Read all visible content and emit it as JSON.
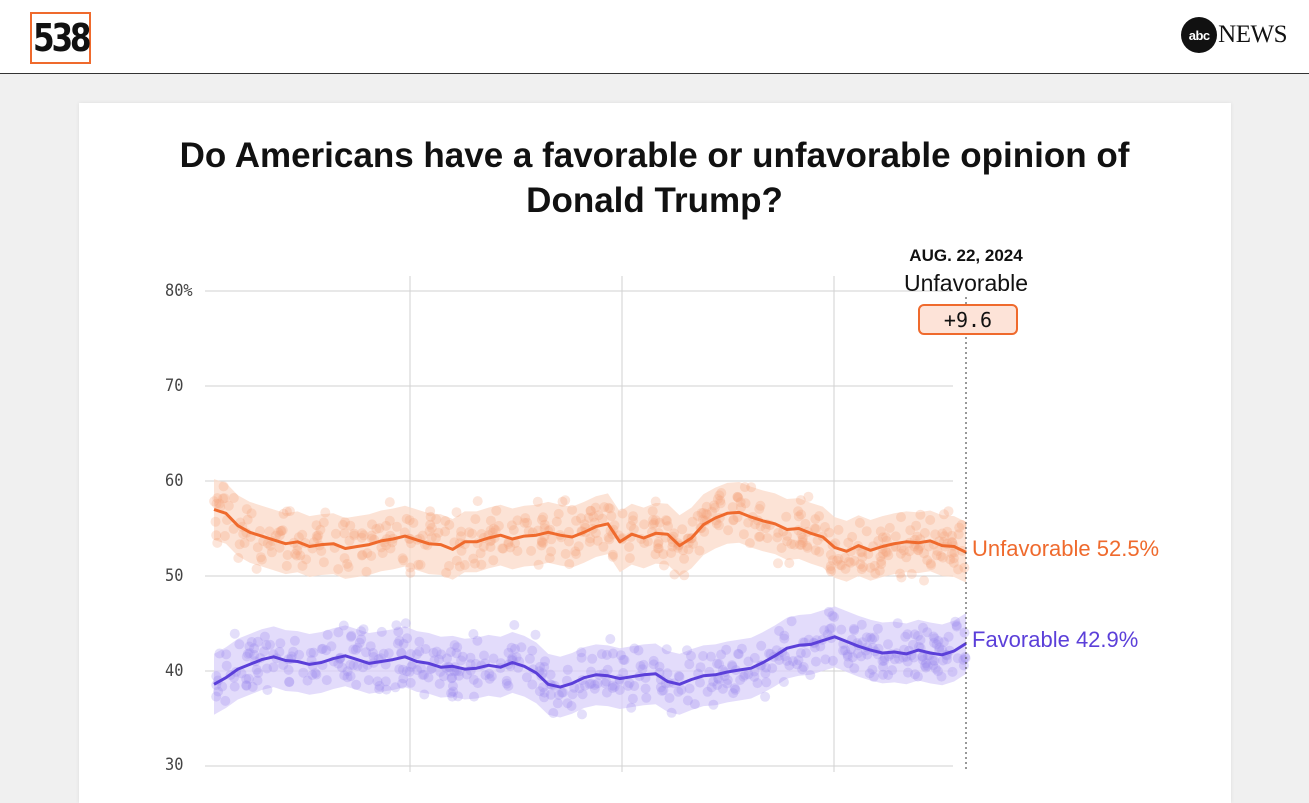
{
  "header": {
    "logo_text": "538",
    "partner_logo_circle": "abc",
    "partner_logo_text": "NEWS"
  },
  "chart_data": {
    "type": "line",
    "title_lines": [
      "Do Americans have a favorable or unfavorable opinion of",
      "Donald Trump?"
    ],
    "ylim": [
      30,
      80
    ],
    "yticks": [
      "80%",
      "70",
      "60",
      "50",
      "40",
      "30"
    ],
    "ytick_values": [
      80,
      70,
      60,
      50,
      40,
      30
    ],
    "grid": true,
    "annotation": {
      "date": "AUG. 22, 2024",
      "leader": "Unfavorable",
      "margin": "+9.6"
    },
    "series": [
      {
        "name": "Unfavorable",
        "label": "Unfavorable 52.5%",
        "color": "#ef6a2d",
        "values": [
          57.0,
          56.6,
          55.3,
          54.6,
          54.2,
          53.8,
          53.4,
          53.6,
          53.1,
          53.3,
          53.4,
          52.9,
          53.1,
          53.3,
          53.7,
          53.9,
          54.2,
          53.8,
          53.4,
          53.3,
          52.8,
          53.6,
          53.6,
          54.0,
          54.3,
          53.9,
          54.2,
          54.3,
          54.6,
          54.3,
          54.1,
          54.6,
          55.2,
          55.5,
          53.6,
          54.4,
          54.0,
          54.5,
          54.4,
          53.2,
          54.0,
          55.4,
          56.1,
          56.6,
          56.7,
          56.2,
          55.8,
          55.5,
          54.9,
          55.0,
          54.5,
          54.1,
          53.0,
          52.6,
          53.2,
          52.7,
          53.1,
          53.4,
          53.6,
          53.5,
          53.7,
          53.2,
          53.1,
          52.5
        ]
      },
      {
        "name": "Favorable",
        "label": "Favorable 42.9%",
        "color": "#5b3fd9",
        "values": [
          38.6,
          39.3,
          40.2,
          40.7,
          41.2,
          41.5,
          41.1,
          41.0,
          40.7,
          40.9,
          41.3,
          41.6,
          41.2,
          40.8,
          41.0,
          41.2,
          41.5,
          41.0,
          40.8,
          40.4,
          40.5,
          40.2,
          40.3,
          40.6,
          40.4,
          40.9,
          40.5,
          39.8,
          38.6,
          38.3,
          38.7,
          39.3,
          39.6,
          39.5,
          39.2,
          39.4,
          39.6,
          39.7,
          38.9,
          38.6,
          39.1,
          39.5,
          39.6,
          39.9,
          40.1,
          40.3,
          40.9,
          41.6,
          42.4,
          42.7,
          42.8,
          43.2,
          43.6,
          43.1,
          42.6,
          42.2,
          41.9,
          42.0,
          41.8,
          42.2,
          41.9,
          41.7,
          42.1,
          42.9
        ]
      }
    ]
  }
}
